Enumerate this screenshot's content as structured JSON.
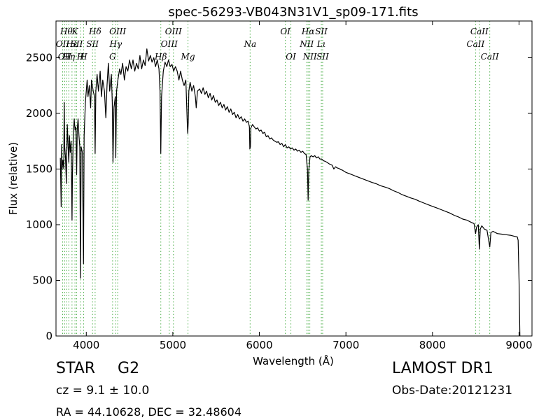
{
  "chart_data": {
    "type": "line",
    "title": "spec-56293-VB043N31V1_sp09-171.fits",
    "xlabel": "Wavelength (Å)",
    "ylabel": "Flux (relative)",
    "xlim": [
      3650,
      9150
    ],
    "ylim": [
      0,
      2830
    ],
    "xticks": [
      4000,
      5000,
      6000,
      7000,
      8000,
      9000
    ],
    "yticks": [
      0,
      500,
      1000,
      1500,
      2000,
      2500
    ],
    "grid": false,
    "line_color": "#000000",
    "marker_color": "#4daf4a",
    "series": [
      {
        "points": [
          [
            3700,
            1600
          ],
          [
            3710,
            1160
          ],
          [
            3715,
            1720
          ],
          [
            3720,
            1500
          ],
          [
            3730,
            1580
          ],
          [
            3740,
            1500
          ],
          [
            3745,
            2100
          ],
          [
            3750,
            1700
          ],
          [
            3760,
            1600
          ],
          [
            3770,
            1370
          ],
          [
            3775,
            1700
          ],
          [
            3780,
            1900
          ],
          [
            3790,
            1700
          ],
          [
            3798,
            1560
          ],
          [
            3805,
            1800
          ],
          [
            3815,
            1650
          ],
          [
            3825,
            1750
          ],
          [
            3835,
            1040
          ],
          [
            3840,
            1450
          ],
          [
            3850,
            1800
          ],
          [
            3860,
            1950
          ],
          [
            3870,
            1850
          ],
          [
            3880,
            1880
          ],
          [
            3889,
            1450
          ],
          [
            3895,
            1850
          ],
          [
            3905,
            1950
          ],
          [
            3915,
            1800
          ],
          [
            3925,
            1700
          ],
          [
            3933,
            520
          ],
          [
            3940,
            1700
          ],
          [
            3955,
            1650
          ],
          [
            3968,
            650
          ],
          [
            3975,
            1800
          ],
          [
            3990,
            2100
          ],
          [
            4010,
            2300
          ],
          [
            4020,
            2150
          ],
          [
            4035,
            2250
          ],
          [
            4050,
            2050
          ],
          [
            4060,
            2300
          ],
          [
            4080,
            2200
          ],
          [
            4095,
            2150
          ],
          [
            4102,
            1640
          ],
          [
            4110,
            2200
          ],
          [
            4125,
            2350
          ],
          [
            4140,
            2200
          ],
          [
            4160,
            2380
          ],
          [
            4175,
            2150
          ],
          [
            4190,
            2300
          ],
          [
            4210,
            2200
          ],
          [
            4226,
            1960
          ],
          [
            4240,
            2250
          ],
          [
            4255,
            2450
          ],
          [
            4270,
            2200
          ],
          [
            4290,
            2350
          ],
          [
            4300,
            2100
          ],
          [
            4308,
            1560
          ],
          [
            4320,
            2050
          ],
          [
            4335,
            2150
          ],
          [
            4341,
            1600
          ],
          [
            4350,
            2200
          ],
          [
            4365,
            2300
          ],
          [
            4385,
            2400
          ],
          [
            4400,
            2350
          ],
          [
            4420,
            2450
          ],
          [
            4440,
            2300
          ],
          [
            4460,
            2420
          ],
          [
            4480,
            2380
          ],
          [
            4500,
            2480
          ],
          [
            4520,
            2400
          ],
          [
            4540,
            2480
          ],
          [
            4560,
            2380
          ],
          [
            4580,
            2450
          ],
          [
            4600,
            2400
          ],
          [
            4620,
            2520
          ],
          [
            4640,
            2400
          ],
          [
            4660,
            2480
          ],
          [
            4680,
            2430
          ],
          [
            4700,
            2580
          ],
          [
            4720,
            2470
          ],
          [
            4740,
            2520
          ],
          [
            4760,
            2460
          ],
          [
            4780,
            2500
          ],
          [
            4800,
            2420
          ],
          [
            4820,
            2480
          ],
          [
            4840,
            2400
          ],
          [
            4852,
            2200
          ],
          [
            4861,
            1640
          ],
          [
            4870,
            2150
          ],
          [
            4890,
            2380
          ],
          [
            4910,
            2460
          ],
          [
            4930,
            2420
          ],
          [
            4950,
            2480
          ],
          [
            4970,
            2420
          ],
          [
            4990,
            2440
          ],
          [
            5010,
            2380
          ],
          [
            5030,
            2420
          ],
          [
            5050,
            2380
          ],
          [
            5070,
            2300
          ],
          [
            5090,
            2380
          ],
          [
            5110,
            2300
          ],
          [
            5130,
            2250
          ],
          [
            5150,
            2300
          ],
          [
            5167,
            1900
          ],
          [
            5172,
            1820
          ],
          [
            5178,
            1920
          ],
          [
            5185,
            2200
          ],
          [
            5200,
            2280
          ],
          [
            5220,
            2200
          ],
          [
            5240,
            2250
          ],
          [
            5260,
            2150
          ],
          [
            5270,
            2050
          ],
          [
            5285,
            2200
          ],
          [
            5310,
            2220
          ],
          [
            5330,
            2180
          ],
          [
            5350,
            2230
          ],
          [
            5370,
            2170
          ],
          [
            5390,
            2200
          ],
          [
            5410,
            2140
          ],
          [
            5430,
            2180
          ],
          [
            5450,
            2120
          ],
          [
            5470,
            2160
          ],
          [
            5490,
            2100
          ],
          [
            5510,
            2120
          ],
          [
            5530,
            2070
          ],
          [
            5550,
            2100
          ],
          [
            5570,
            2050
          ],
          [
            5590,
            2080
          ],
          [
            5610,
            2030
          ],
          [
            5630,
            2060
          ],
          [
            5650,
            2010
          ],
          [
            5670,
            2040
          ],
          [
            5690,
            1990
          ],
          [
            5710,
            2010
          ],
          [
            5730,
            1960
          ],
          [
            5750,
            1990
          ],
          [
            5770,
            1950
          ],
          [
            5790,
            1970
          ],
          [
            5810,
            1930
          ],
          [
            5830,
            1950
          ],
          [
            5850,
            1920
          ],
          [
            5870,
            1930
          ],
          [
            5885,
            1880
          ],
          [
            5890,
            1680
          ],
          [
            5896,
            1700
          ],
          [
            5902,
            1870
          ],
          [
            5920,
            1900
          ],
          [
            5940,
            1880
          ],
          [
            5960,
            1860
          ],
          [
            5980,
            1870
          ],
          [
            6000,
            1840
          ],
          [
            6020,
            1850
          ],
          [
            6040,
            1820
          ],
          [
            6060,
            1830
          ],
          [
            6080,
            1790
          ],
          [
            6100,
            1800
          ],
          [
            6120,
            1770
          ],
          [
            6140,
            1780
          ],
          [
            6160,
            1760
          ],
          [
            6180,
            1750
          ],
          [
            6200,
            1740
          ],
          [
            6220,
            1745
          ],
          [
            6240,
            1720
          ],
          [
            6260,
            1730
          ],
          [
            6280,
            1700
          ],
          [
            6300,
            1720
          ],
          [
            6320,
            1690
          ],
          [
            6340,
            1700
          ],
          [
            6360,
            1680
          ],
          [
            6380,
            1690
          ],
          [
            6400,
            1670
          ],
          [
            6420,
            1680
          ],
          [
            6440,
            1660
          ],
          [
            6460,
            1670
          ],
          [
            6480,
            1650
          ],
          [
            6500,
            1660
          ],
          [
            6520,
            1640
          ],
          [
            6540,
            1630
          ],
          [
            6555,
            1500
          ],
          [
            6563,
            1220
          ],
          [
            6570,
            1480
          ],
          [
            6585,
            1610
          ],
          [
            6600,
            1620
          ],
          [
            6620,
            1610
          ],
          [
            6640,
            1620
          ],
          [
            6660,
            1600
          ],
          [
            6680,
            1610
          ],
          [
            6700,
            1590
          ],
          [
            6720,
            1590
          ],
          [
            6740,
            1575
          ],
          [
            6760,
            1570
          ],
          [
            6780,
            1560
          ],
          [
            6800,
            1550
          ],
          [
            6820,
            1540
          ],
          [
            6840,
            1535
          ],
          [
            6860,
            1500
          ],
          [
            6880,
            1520
          ],
          [
            6900,
            1510
          ],
          [
            6920,
            1505
          ],
          [
            6940,
            1495
          ],
          [
            6960,
            1490
          ],
          [
            6980,
            1480
          ],
          [
            7000,
            1470
          ],
          [
            7050,
            1455
          ],
          [
            7100,
            1440
          ],
          [
            7150,
            1425
          ],
          [
            7200,
            1410
          ],
          [
            7250,
            1395
          ],
          [
            7300,
            1380
          ],
          [
            7350,
            1368
          ],
          [
            7400,
            1350
          ],
          [
            7450,
            1338
          ],
          [
            7500,
            1325
          ],
          [
            7550,
            1305
          ],
          [
            7600,
            1290
          ],
          [
            7650,
            1270
          ],
          [
            7700,
            1255
          ],
          [
            7750,
            1240
          ],
          [
            7800,
            1228
          ],
          [
            7850,
            1210
          ],
          [
            7900,
            1195
          ],
          [
            7950,
            1180
          ],
          [
            8000,
            1165
          ],
          [
            8050,
            1150
          ],
          [
            8100,
            1135
          ],
          [
            8150,
            1120
          ],
          [
            8200,
            1105
          ],
          [
            8250,
            1085
          ],
          [
            8300,
            1070
          ],
          [
            8350,
            1050
          ],
          [
            8400,
            1040
          ],
          [
            8450,
            1020
          ],
          [
            8480,
            1010
          ],
          [
            8498,
            920
          ],
          [
            8510,
            980
          ],
          [
            8530,
            1000
          ],
          [
            8542,
            780
          ],
          [
            8552,
            960
          ],
          [
            8570,
            990
          ],
          [
            8600,
            960
          ],
          [
            8630,
            950
          ],
          [
            8662,
            800
          ],
          [
            8675,
            930
          ],
          [
            8700,
            940
          ],
          [
            8750,
            920
          ],
          [
            8800,
            915
          ],
          [
            8850,
            910
          ],
          [
            8900,
            905
          ],
          [
            8950,
            895
          ],
          [
            8980,
            890
          ],
          [
            8990,
            860
          ],
          [
            9000,
            500
          ],
          [
            9010,
            0
          ]
        ]
      }
    ],
    "lines": [
      {
        "wl": 3727,
        "name": "OII",
        "row": 2
      },
      {
        "wl": 3750,
        "name": "OII",
        "row": 3
      },
      {
        "wl": 3770,
        "name": "Hθ",
        "row": 1
      },
      {
        "wl": 3798,
        "name": "Hη",
        "row": 3
      },
      {
        "wl": 3835,
        "name": "Hε",
        "row": 2
      },
      {
        "wl": 3869,
        "name": "K",
        "row": 1
      },
      {
        "wl": 3889,
        "name": "SII",
        "row": 2
      },
      {
        "wl": 3934,
        "name": "H",
        "row": 3
      },
      {
        "wl": 3969,
        "name": "H",
        "row": 3
      },
      {
        "wl": 4072,
        "name": "SII",
        "row": 2
      },
      {
        "wl": 4102,
        "name": "Hδ",
        "row": 1
      },
      {
        "wl": 4304,
        "name": "G",
        "row": 3
      },
      {
        "wl": 4340,
        "name": "Hγ",
        "row": 2
      },
      {
        "wl": 4363,
        "name": "OIII",
        "row": 1
      },
      {
        "wl": 4861,
        "name": "Hβ",
        "row": 3
      },
      {
        "wl": 4959,
        "name": "OIII",
        "row": 2
      },
      {
        "wl": 5007,
        "name": "OIII",
        "row": 1
      },
      {
        "wl": 5175,
        "name": "Mg",
        "row": 3
      },
      {
        "wl": 5893,
        "name": "Na",
        "row": 2
      },
      {
        "wl": 6300,
        "name": "OI",
        "row": 1
      },
      {
        "wl": 6364,
        "name": "OI",
        "row": 3
      },
      {
        "wl": 6548,
        "name": "NII",
        "row": 2
      },
      {
        "wl": 6563,
        "name": "Hα",
        "row": 1
      },
      {
        "wl": 6583,
        "name": "NII",
        "row": 3
      },
      {
        "wl": 6716,
        "name": "SII",
        "row": 1
      },
      {
        "wl": 6716,
        "name": "Lι",
        "row": 2
      },
      {
        "wl": 6731,
        "name": "SII",
        "row": 3
      },
      {
        "wl": 8498,
        "name": "CaII",
        "row": 2
      },
      {
        "wl": 8542,
        "name": "CaII",
        "row": 1
      },
      {
        "wl": 8662,
        "name": "CaII",
        "row": 3
      }
    ]
  },
  "info": {
    "object_class": "STAR",
    "subclass": "G2",
    "redshift": "cz = 9.1 ± 10.0",
    "coords": "RA = 44.10628, DEC = 32.48604",
    "survey": "LAMOST DR1",
    "obs_date": "Obs-Date:20121231"
  }
}
